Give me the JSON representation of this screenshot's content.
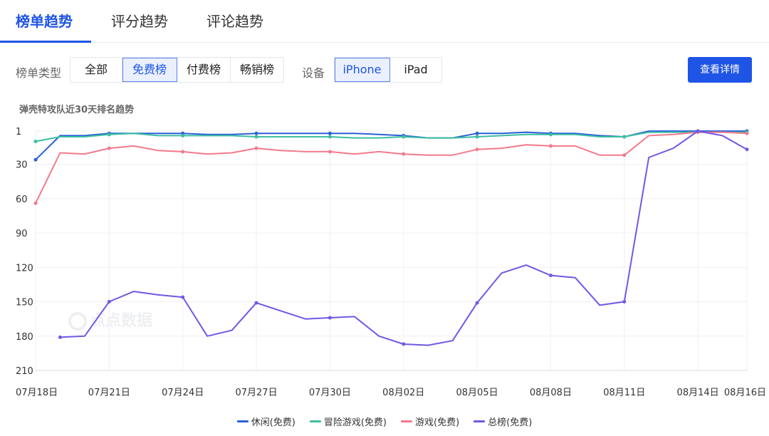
{
  "tabs": [
    {
      "label": "榜单趋势",
      "active": true
    },
    {
      "label": "评分趋势",
      "active": false
    },
    {
      "label": "评论趋势",
      "active": false
    }
  ],
  "filters": {
    "list_type_label": "榜单类型",
    "list_types": [
      "全部",
      "免费榜",
      "付费榜",
      "畅销榜"
    ],
    "list_type_selected": "免费榜",
    "device_label": "设备",
    "devices": [
      "iPhone",
      "iPad"
    ],
    "device_selected": "iPhone",
    "detail_button": "查看详情"
  },
  "watermark": "点点数据",
  "chart_data": {
    "type": "line",
    "title": "弹壳特攻队近30天排名趋势",
    "y_inverted": true,
    "ylim": [
      1,
      210
    ],
    "yticks": [
      1,
      30,
      60,
      90,
      120,
      150,
      180,
      210
    ],
    "x": [
      "07月18日",
      "07月19日",
      "07月20日",
      "07月21日",
      "07月22日",
      "07月23日",
      "07月24日",
      "07月25日",
      "07月26日",
      "07月27日",
      "07月28日",
      "07月29日",
      "07月30日",
      "07月31日",
      "08月01日",
      "08月02日",
      "08月03日",
      "08月04日",
      "08月05日",
      "08月06日",
      "08月07日",
      "08月08日",
      "08月09日",
      "08月10日",
      "08月11日",
      "08月12日",
      "08月13日",
      "08月14日",
      "08月15日",
      "08月16日"
    ],
    "xticks": [
      "07月18日",
      "07月21日",
      "07月24日",
      "07月27日",
      "07月30日",
      "08月02日",
      "08月05日",
      "08月08日",
      "08月11日",
      "08月14日",
      "08月16日"
    ],
    "grid": true,
    "legend_position": "bottom",
    "series": [
      {
        "name": "休闲(免费)",
        "color": "#2b5fd9",
        "values": [
          26,
          5,
          5,
          3,
          3,
          3,
          3,
          4,
          4,
          3,
          3,
          3,
          3,
          3,
          4,
          5,
          7,
          7,
          3,
          3,
          2,
          3,
          3,
          5,
          6,
          1,
          1,
          1,
          1,
          1
        ]
      },
      {
        "name": "冒险游戏(免费)",
        "color": "#3dbfa1",
        "values": [
          10,
          6,
          6,
          4,
          3,
          5,
          5,
          5,
          5,
          6,
          6,
          6,
          6,
          7,
          7,
          6,
          7,
          7,
          6,
          5,
          4,
          4,
          4,
          6,
          6,
          2,
          2,
          2,
          2,
          2
        ]
      },
      {
        "name": "游戏(免费)",
        "color": "#f37a8c",
        "values": [
          64,
          20,
          21,
          16,
          14,
          18,
          19,
          21,
          20,
          16,
          18,
          19,
          19,
          21,
          19,
          21,
          22,
          22,
          17,
          16,
          13,
          14,
          14,
          22,
          22,
          5,
          4,
          2,
          2,
          3
        ]
      },
      {
        "name": "总榜(免费)",
        "color": "#7357e6",
        "values": [
          null,
          181,
          180,
          150,
          141,
          144,
          146,
          180,
          175,
          151,
          158,
          165,
          164,
          163,
          180,
          187,
          188,
          184,
          151,
          125,
          118,
          127,
          129,
          153,
          150,
          24,
          16,
          1,
          5,
          17
        ]
      }
    ]
  }
}
